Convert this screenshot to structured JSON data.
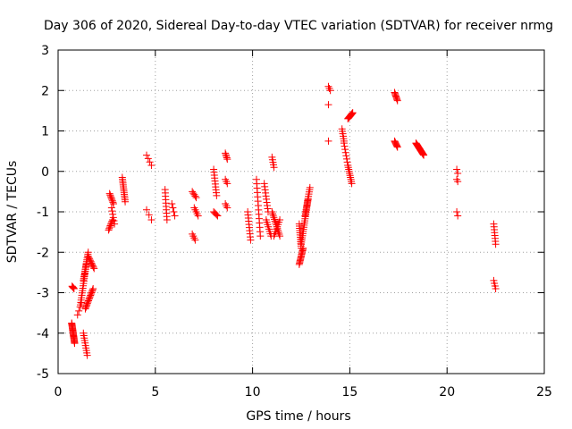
{
  "chart_data": {
    "type": "scatter",
    "title": "Day 306 of 2020, Sidereal Day-to-day VTEC variation (SDTVAR) for receiver nrmg",
    "xlabel": "GPS time / hours",
    "ylabel": "SDTVAR / TECUs",
    "xlim": [
      0,
      25
    ],
    "ylim": [
      -5,
      3
    ],
    "xticks": [
      0,
      5,
      10,
      15,
      20,
      25
    ],
    "yticks": [
      -5,
      -4,
      -3,
      -2,
      -1,
      0,
      1,
      2,
      3
    ],
    "xtick_labels": [
      "0",
      "5",
      "10",
      "15",
      "20",
      "25"
    ],
    "ytick_labels": [
      "-5",
      "-4",
      "-3",
      "-2",
      "-1",
      "0",
      "1",
      "2",
      "3"
    ],
    "grid": true,
    "marker": "+",
    "color": "#ff0000",
    "series": [
      {
        "name": "nrmg",
        "segments": [
          {
            "x0": 0.72,
            "x1": 0.82,
            "y0": -2.84,
            "y1": -2.9,
            "n": 5
          },
          {
            "x0": 0.7,
            "x1": 0.85,
            "y0": -3.75,
            "y1": -4.25,
            "n": 22
          },
          {
            "x0": 1.0,
            "x1": 1.2,
            "y0": -3.55,
            "y1": -3.25,
            "n": 4
          },
          {
            "x0": 1.15,
            "x1": 1.45,
            "y0": -3.3,
            "y1": -2.3,
            "n": 18
          },
          {
            "x0": 1.3,
            "x1": 1.55,
            "y0": -2.7,
            "y1": -2.0,
            "n": 16
          },
          {
            "x0": 1.4,
            "x1": 1.8,
            "y0": -3.4,
            "y1": -2.9,
            "n": 16
          },
          {
            "x0": 1.55,
            "x1": 1.85,
            "y0": -2.1,
            "y1": -2.4,
            "n": 10
          },
          {
            "x0": 1.3,
            "x1": 1.5,
            "y0": -4.0,
            "y1": -4.55,
            "n": 10
          },
          {
            "x0": 2.6,
            "x1": 2.8,
            "y0": -1.45,
            "y1": -1.2,
            "n": 8
          },
          {
            "x0": 2.65,
            "x1": 2.85,
            "y0": -0.55,
            "y1": -0.8,
            "n": 8
          },
          {
            "x0": 2.75,
            "x1": 2.9,
            "y0": -0.9,
            "y1": -1.3,
            "n": 6
          },
          {
            "x0": 3.3,
            "x1": 3.45,
            "y0": -0.15,
            "y1": -0.75,
            "n": 14
          },
          {
            "x0": 4.55,
            "x1": 4.8,
            "y0": 0.4,
            "y1": 0.15,
            "n": 4
          },
          {
            "x0": 4.55,
            "x1": 4.8,
            "y0": -0.95,
            "y1": -1.2,
            "n": 3
          },
          {
            "x0": 5.5,
            "x1": 5.6,
            "y0": -0.45,
            "y1": -1.2,
            "n": 10
          },
          {
            "x0": 5.85,
            "x1": 6.0,
            "y0": -0.8,
            "y1": -1.1,
            "n": 4
          },
          {
            "x0": 6.9,
            "x1": 7.1,
            "y0": -0.5,
            "y1": -0.65,
            "n": 5
          },
          {
            "x0": 6.9,
            "x1": 7.05,
            "y0": -1.55,
            "y1": -1.7,
            "n": 4
          },
          {
            "x0": 7.0,
            "x1": 7.2,
            "y0": -0.9,
            "y1": -1.1,
            "n": 5
          },
          {
            "x0": 8.0,
            "x1": 8.15,
            "y0": 0.05,
            "y1": -0.6,
            "n": 10
          },
          {
            "x0": 8.0,
            "x1": 8.2,
            "y0": -1.0,
            "y1": -1.1,
            "n": 5
          },
          {
            "x0": 8.6,
            "x1": 8.7,
            "y0": 0.45,
            "y1": 0.3,
            "n": 5
          },
          {
            "x0": 8.6,
            "x1": 8.7,
            "y0": -0.2,
            "y1": -0.3,
            "n": 3
          },
          {
            "x0": 8.6,
            "x1": 8.7,
            "y0": -0.8,
            "y1": -0.9,
            "n": 3
          },
          {
            "x0": 9.75,
            "x1": 9.9,
            "y0": -1.0,
            "y1": -1.7,
            "n": 10
          },
          {
            "x0": 10.2,
            "x1": 10.4,
            "y0": -0.2,
            "y1": -1.6,
            "n": 14
          },
          {
            "x0": 10.6,
            "x1": 10.8,
            "y0": -0.3,
            "y1": -1.0,
            "n": 10
          },
          {
            "x0": 10.7,
            "x1": 10.95,
            "y0": -1.2,
            "y1": -1.6,
            "n": 8
          },
          {
            "x0": 11.0,
            "x1": 11.1,
            "y0": 0.35,
            "y1": 0.1,
            "n": 5
          },
          {
            "x0": 11.0,
            "x1": 11.4,
            "y0": -1.0,
            "y1": -1.6,
            "n": 14
          },
          {
            "x0": 11.1,
            "x1": 11.4,
            "y0": -1.6,
            "y1": -1.2,
            "n": 8
          },
          {
            "x0": 12.4,
            "x1": 12.5,
            "y0": -1.3,
            "y1": -1.9,
            "n": 12
          },
          {
            "x0": 12.4,
            "x1": 12.6,
            "y0": -2.3,
            "y1": -1.9,
            "n": 14
          },
          {
            "x0": 12.5,
            "x1": 12.85,
            "y0": -1.8,
            "y1": -0.7,
            "n": 22
          },
          {
            "x0": 12.7,
            "x1": 12.95,
            "y0": -1.1,
            "y1": -0.4,
            "n": 14
          },
          {
            "x0": 13.9,
            "x1": 14.0,
            "y0": 2.1,
            "y1": 2.0,
            "n": 3
          },
          {
            "x0": 13.9,
            "x1": 13.95,
            "y0": 1.65,
            "y1": 1.65,
            "n": 1
          },
          {
            "x0": 13.9,
            "x1": 13.95,
            "y0": 0.75,
            "y1": 0.75,
            "n": 1
          },
          {
            "x0": 14.6,
            "x1": 14.7,
            "y0": 1.05,
            "y1": 0.75,
            "n": 6
          },
          {
            "x0": 14.7,
            "x1": 14.9,
            "y0": 0.7,
            "y1": 0.15,
            "n": 8
          },
          {
            "x0": 14.9,
            "x1": 15.1,
            "y0": 0.15,
            "y1": -0.3,
            "n": 10
          },
          {
            "x0": 14.9,
            "x1": 15.15,
            "y0": 1.3,
            "y1": 1.45,
            "n": 12
          },
          {
            "x0": 17.3,
            "x1": 17.45,
            "y0": 1.95,
            "y1": 1.75,
            "n": 8
          },
          {
            "x0": 17.3,
            "x1": 17.45,
            "y0": 0.75,
            "y1": 0.6,
            "n": 8
          },
          {
            "x0": 18.4,
            "x1": 18.8,
            "y0": 0.7,
            "y1": 0.4,
            "n": 22
          },
          {
            "x0": 20.5,
            "x1": 20.55,
            "y0": 0.05,
            "y1": -0.05,
            "n": 2
          },
          {
            "x0": 20.5,
            "x1": 20.55,
            "y0": -0.2,
            "y1": -0.25,
            "n": 2
          },
          {
            "x0": 20.5,
            "x1": 20.55,
            "y0": -1.0,
            "y1": -1.1,
            "n": 2
          },
          {
            "x0": 22.4,
            "x1": 22.5,
            "y0": -1.3,
            "y1": -1.8,
            "n": 8
          },
          {
            "x0": 22.4,
            "x1": 22.5,
            "y0": -2.7,
            "y1": -2.9,
            "n": 4
          }
        ]
      }
    ]
  }
}
